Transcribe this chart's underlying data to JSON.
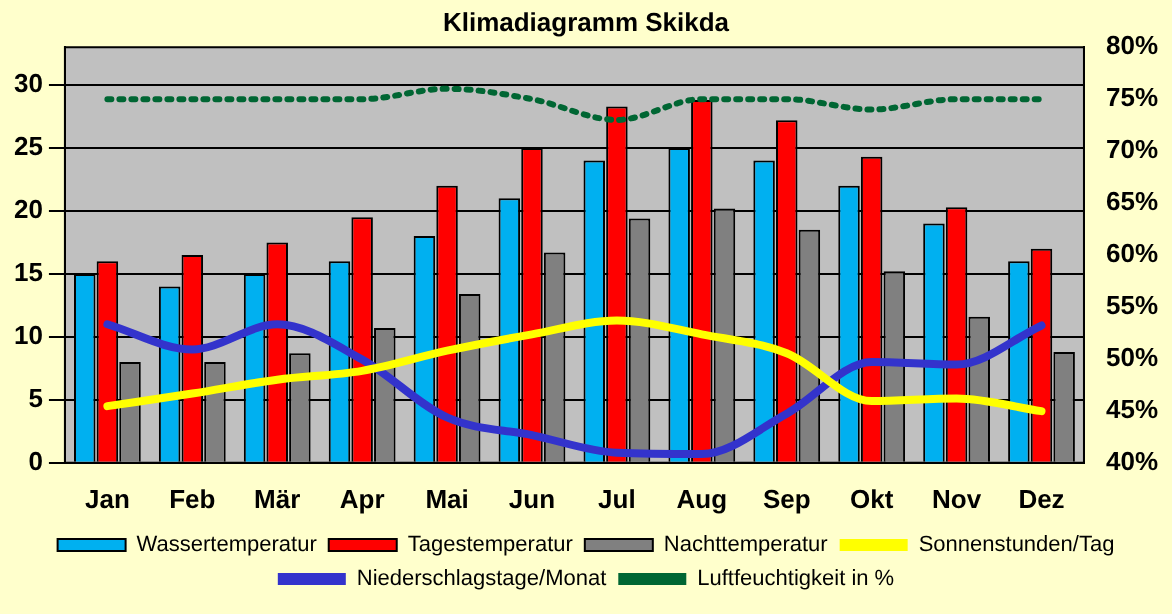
{
  "chart_data": {
    "type": "bar",
    "title": "Klimadiagramm Skikda",
    "categories": [
      "Jan",
      "Feb",
      "Mär",
      "Apr",
      "Mai",
      "Jun",
      "Jul",
      "Aug",
      "Sep",
      "Okt",
      "Nov",
      "Dez"
    ],
    "series": [
      {
        "name": "Wassertemperatur",
        "color": "#00b0f0",
        "values": [
          15,
          14,
          15,
          16,
          18,
          21,
          24,
          25,
          24,
          22,
          19,
          16
        ]
      },
      {
        "name": "Tagestemperatur",
        "color": "#ff0000",
        "values": [
          16,
          16.5,
          17.5,
          19.5,
          22,
          25,
          28.3,
          28.8,
          27.2,
          24.3,
          20.3,
          17
        ]
      },
      {
        "name": "Nachttemperatur",
        "color": "#808080",
        "values": [
          8,
          8,
          8.7,
          10.7,
          13.4,
          16.7,
          19.4,
          20.2,
          18.5,
          15.2,
          11.6,
          8.8
        ]
      },
      {
        "name": "Sonnenstunden/Tag",
        "type": "line",
        "color": "#ffff00",
        "values": [
          4.5,
          5.5,
          6.6,
          7.3,
          8.9,
          10.2,
          11.3,
          10.2,
          8.7,
          4.9,
          5.1,
          4.1
        ]
      },
      {
        "name": "Niederschlagstage/Monat",
        "type": "line",
        "color": "#3333cc",
        "values": [
          11,
          9,
          11,
          8.2,
          3.6,
          2.2,
          0.8,
          0.7,
          3.9,
          8,
          7.8,
          10.9
        ]
      },
      {
        "name": "Luftfeuchtigkeit in %",
        "type": "line",
        "axis": "y2",
        "line_style": "dotted",
        "color": "#006633",
        "values": [
          75,
          75,
          75,
          75,
          76,
          75,
          73,
          75,
          75,
          74,
          75,
          75
        ]
      }
    ],
    "ylim": [
      0,
      33
    ],
    "yticks": [
      0,
      5,
      10,
      15,
      20,
      25,
      30
    ],
    "y2lim": [
      40,
      80
    ],
    "y2ticks": [
      {
        "value": 40,
        "label": "40%"
      },
      {
        "value": 45,
        "label": "45%"
      },
      {
        "value": 50,
        "label": "50%"
      },
      {
        "value": 55,
        "label": "55%"
      },
      {
        "value": 60,
        "label": "60%"
      },
      {
        "value": 65,
        "label": "65%"
      },
      {
        "value": 70,
        "label": "70%"
      },
      {
        "value": 75,
        "label": "75%"
      },
      {
        "value": 80,
        "label": "80%"
      }
    ],
    "grid": "y",
    "legend": "bottom",
    "marker": "none"
  }
}
